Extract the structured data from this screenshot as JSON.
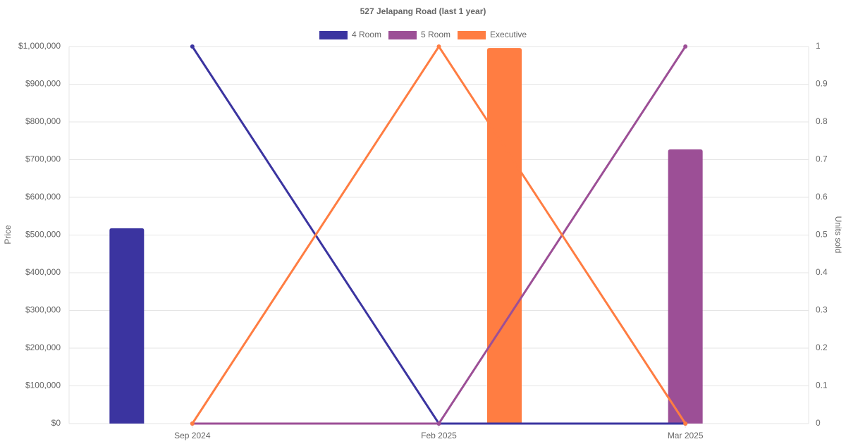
{
  "chart_data": {
    "type": "bar-line",
    "title": "527 Jelapang Road (last 1 year)",
    "categories": [
      "Sep 2024",
      "Feb 2025",
      "Mar 2025"
    ],
    "y_label": "Price",
    "y2_label": "Units sold",
    "ylim": [
      0,
      1000000
    ],
    "yticks": [
      {
        "value": 0,
        "label": "$0"
      },
      {
        "value": 100000,
        "label": "$100,000"
      },
      {
        "value": 200000,
        "label": "$200,000"
      },
      {
        "value": 300000,
        "label": "$300,000"
      },
      {
        "value": 400000,
        "label": "$400,000"
      },
      {
        "value": 500000,
        "label": "$500,000"
      },
      {
        "value": 600000,
        "label": "$600,000"
      },
      {
        "value": 700000,
        "label": "$700,000"
      },
      {
        "value": 800000,
        "label": "$800,000"
      },
      {
        "value": 900000,
        "label": "$900,000"
      },
      {
        "value": 1000000,
        "label": "$1,000,000"
      }
    ],
    "y2lim": [
      0,
      1
    ],
    "y2ticks": [
      0,
      0.1,
      0.2,
      0.3,
      0.4,
      0.5,
      0.6,
      0.7,
      0.8,
      0.9,
      1
    ],
    "grid": true,
    "series": [
      {
        "name": "4 Room",
        "color": "#3b34a0",
        "values": [
          518000,
          null,
          null
        ],
        "units_sold": [
          1,
          0,
          0
        ]
      },
      {
        "name": "5 Room",
        "color": "#9c4f96",
        "values": [
          null,
          null,
          727000
        ],
        "units_sold": [
          0,
          0,
          1
        ]
      },
      {
        "name": "Executive",
        "color": "#ff7d42",
        "values": [
          null,
          996000,
          null
        ],
        "units_sold": [
          0,
          1,
          0
        ]
      }
    ]
  }
}
